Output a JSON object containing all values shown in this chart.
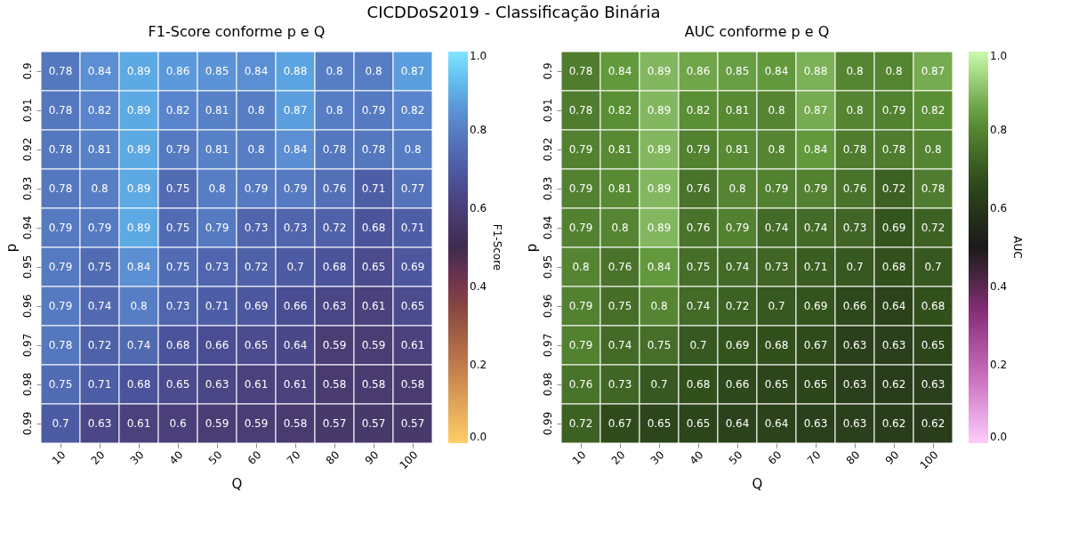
{
  "chart_data": [
    {
      "type": "heatmap",
      "title": "F1-Score conforme p e Q",
      "xlabel": "Q",
      "ylabel": "p",
      "clabel": "F1-Score",
      "annotations": [
        "CICDDoS2019 - Classificação Binária"
      ],
      "categories": [
        "10",
        "20",
        "30",
        "40",
        "50",
        "60",
        "70",
        "80",
        "90",
        "100"
      ],
      "y_categories": [
        "0.9",
        "0.91",
        "0.92",
        "0.93",
        "0.94",
        "0.95",
        "0.96",
        "0.97",
        "0.98",
        "0.99"
      ],
      "cells": [
        [
          0.78,
          0.84,
          0.89,
          0.86,
          0.85,
          0.84,
          0.88,
          0.8,
          0.8,
          0.87
        ],
        [
          0.78,
          0.82,
          0.89,
          0.82,
          0.81,
          0.8,
          0.87,
          0.8,
          0.79,
          0.82
        ],
        [
          0.78,
          0.81,
          0.89,
          0.79,
          0.81,
          0.8,
          0.84,
          0.78,
          0.78,
          0.8
        ],
        [
          0.78,
          0.8,
          0.89,
          0.75,
          0.8,
          0.79,
          0.79,
          0.76,
          0.71,
          0.77
        ],
        [
          0.79,
          0.79,
          0.89,
          0.75,
          0.79,
          0.73,
          0.73,
          0.72,
          0.68,
          0.71
        ],
        [
          0.79,
          0.75,
          0.84,
          0.75,
          0.73,
          0.72,
          0.7,
          0.68,
          0.65,
          0.69
        ],
        [
          0.79,
          0.74,
          0.8,
          0.73,
          0.71,
          0.69,
          0.66,
          0.63,
          0.61,
          0.65
        ],
        [
          0.78,
          0.72,
          0.74,
          0.68,
          0.66,
          0.65,
          0.64,
          0.59,
          0.59,
          0.61
        ],
        [
          0.75,
          0.71,
          0.68,
          0.65,
          0.63,
          0.61,
          0.61,
          0.58,
          0.58,
          0.58
        ],
        [
          0.7,
          0.63,
          0.61,
          0.6,
          0.59,
          0.59,
          0.58,
          0.57,
          0.57,
          0.57
        ]
      ],
      "clim": [
        0,
        1
      ],
      "cticks": [
        {
          "value": 0,
          "label": "0.0"
        },
        {
          "value": 0.2,
          "label": "0.2"
        },
        {
          "value": 0.4,
          "label": "0.4"
        },
        {
          "value": 0.6,
          "label": "0.6"
        },
        {
          "value": 0.8,
          "label": "0.8"
        },
        {
          "value": 1,
          "label": "1.0"
        }
      ],
      "data_labels": true
    },
    {
      "type": "heatmap",
      "title": "AUC conforme p e Q",
      "xlabel": "Q",
      "ylabel": "p",
      "clabel": "AUC",
      "categories": [
        "10",
        "20",
        "30",
        "40",
        "50",
        "60",
        "70",
        "80",
        "90",
        "100"
      ],
      "y_categories": [
        "0.9",
        "0.91",
        "0.92",
        "0.93",
        "0.94",
        "0.95",
        "0.96",
        "0.97",
        "0.98",
        "0.99"
      ],
      "cells": [
        [
          0.78,
          0.84,
          0.89,
          0.86,
          0.85,
          0.84,
          0.88,
          0.8,
          0.8,
          0.87
        ],
        [
          0.78,
          0.82,
          0.89,
          0.82,
          0.81,
          0.8,
          0.87,
          0.8,
          0.79,
          0.82
        ],
        [
          0.79,
          0.81,
          0.89,
          0.79,
          0.81,
          0.8,
          0.84,
          0.78,
          0.78,
          0.8
        ],
        [
          0.79,
          0.81,
          0.89,
          0.76,
          0.8,
          0.79,
          0.79,
          0.76,
          0.72,
          0.78
        ],
        [
          0.79,
          0.8,
          0.89,
          0.76,
          0.79,
          0.74,
          0.74,
          0.73,
          0.69,
          0.72
        ],
        [
          0.8,
          0.76,
          0.84,
          0.75,
          0.74,
          0.73,
          0.71,
          0.7,
          0.68,
          0.7
        ],
        [
          0.79,
          0.75,
          0.8,
          0.74,
          0.72,
          0.7,
          0.69,
          0.66,
          0.64,
          0.68
        ],
        [
          0.79,
          0.74,
          0.75,
          0.7,
          0.69,
          0.68,
          0.67,
          0.63,
          0.63,
          0.65
        ],
        [
          0.76,
          0.73,
          0.7,
          0.68,
          0.66,
          0.65,
          0.65,
          0.63,
          0.62,
          0.63
        ],
        [
          0.72,
          0.67,
          0.65,
          0.65,
          0.64,
          0.64,
          0.63,
          0.63,
          0.62,
          0.62
        ]
      ],
      "clim": [
        0,
        1
      ],
      "cticks": [
        {
          "value": 0,
          "label": "0.0"
        },
        {
          "value": 0.2,
          "label": "0.2"
        },
        {
          "value": 0.4,
          "label": "0.4"
        },
        {
          "value": 0.6,
          "label": "0.6"
        },
        {
          "value": 0.8,
          "label": "0.8"
        },
        {
          "value": 1,
          "label": "1.0"
        }
      ],
      "data_labels": true
    }
  ]
}
